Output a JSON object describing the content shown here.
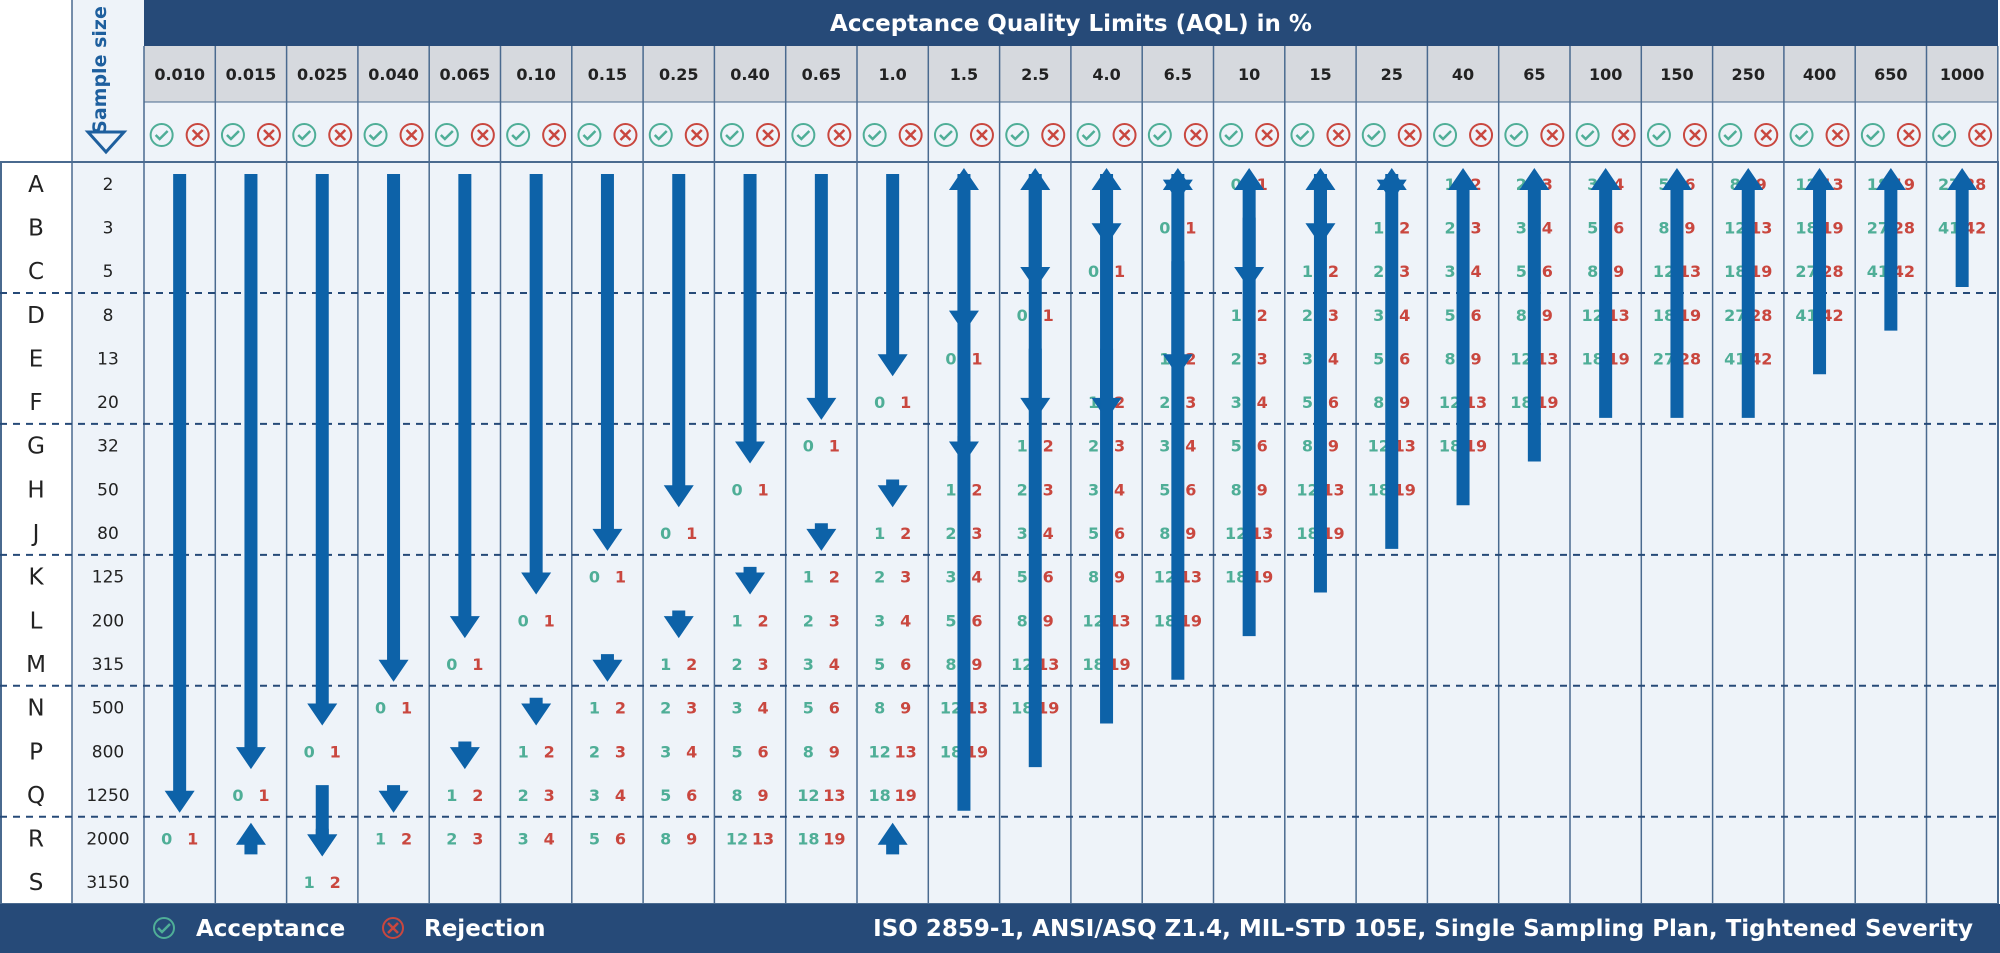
{
  "title": "Acceptance Quality Limits (AQL) in %",
  "sample_size_label": "Sample size",
  "aql_values": [
    "0.010",
    "0.015",
    "0.025",
    "0.040",
    "0.065",
    "0.10",
    "0.15",
    "0.25",
    "0.40",
    "0.65",
    "1.0",
    "1.5",
    "2.5",
    "4.0",
    "6.5",
    "10",
    "15",
    "25",
    "40",
    "65",
    "100",
    "150",
    "250",
    "400",
    "650",
    "1000"
  ],
  "code_letters": [
    "A",
    "B",
    "C",
    "D",
    "E",
    "F",
    "G",
    "H",
    "J",
    "K",
    "L",
    "M",
    "N",
    "P",
    "Q",
    "R",
    "S"
  ],
  "sample_sizes": [
    "2",
    "3",
    "5",
    "8",
    "13",
    "20",
    "32",
    "50",
    "80",
    "125",
    "200",
    "315",
    "500",
    "800",
    "1250",
    "2000",
    "3150"
  ],
  "legend": {
    "acceptance": "Acceptance",
    "rejection": "Rejection"
  },
  "standard_note": "ISO 2859-1, ANSI/ASQ Z1.4, MIL-STD 105E, Single Sampling Plan, Tightened Severity",
  "colors": {
    "header_blue": "#264a78",
    "header_gray": "#d6d9de",
    "body_bg": "#eef3f9",
    "arrow_blue": "#0d62a8",
    "accept_green": "#4fae97",
    "reject_red": "#c9473f",
    "grid_line": "#4a6a8f"
  },
  "icons": {
    "accept": "check-circle-icon",
    "reject": "x-circle-icon",
    "sort": "triangle-down-icon"
  },
  "plan_values": [
    [
      null,
      null,
      null,
      null,
      null,
      null,
      null,
      null,
      null,
      null,
      null,
      null,
      null,
      null,
      null,
      [
        0,
        1
      ],
      null,
      null,
      [
        1,
        2
      ],
      [
        2,
        3
      ],
      [
        3,
        4
      ],
      [
        5,
        6
      ],
      [
        8,
        9
      ],
      [
        12,
        13
      ],
      [
        18,
        19
      ],
      [
        27,
        28
      ]
    ],
    [
      null,
      null,
      null,
      null,
      null,
      null,
      null,
      null,
      null,
      null,
      null,
      null,
      null,
      null,
      [
        0,
        1
      ],
      null,
      null,
      [
        1,
        2
      ],
      [
        2,
        3
      ],
      [
        3,
        4
      ],
      [
        5,
        6
      ],
      [
        8,
        9
      ],
      [
        12,
        13
      ],
      [
        18,
        19
      ],
      [
        27,
        28
      ],
      [
        41,
        42
      ]
    ],
    [
      null,
      null,
      null,
      null,
      null,
      null,
      null,
      null,
      null,
      null,
      null,
      null,
      null,
      [
        0,
        1
      ],
      null,
      null,
      [
        1,
        2
      ],
      [
        2,
        3
      ],
      [
        3,
        4
      ],
      [
        5,
        6
      ],
      [
        8,
        9
      ],
      [
        12,
        13
      ],
      [
        18,
        19
      ],
      [
        27,
        28
      ],
      [
        41,
        42
      ],
      null
    ],
    [
      null,
      null,
      null,
      null,
      null,
      null,
      null,
      null,
      null,
      null,
      null,
      null,
      [
        0,
        1
      ],
      null,
      null,
      [
        1,
        2
      ],
      [
        2,
        3
      ],
      [
        3,
        4
      ],
      [
        5,
        6
      ],
      [
        8,
        9
      ],
      [
        12,
        13
      ],
      [
        18,
        19
      ],
      [
        27,
        28
      ],
      [
        41,
        42
      ],
      null,
      null
    ],
    [
      null,
      null,
      null,
      null,
      null,
      null,
      null,
      null,
      null,
      null,
      null,
      [
        0,
        1
      ],
      null,
      null,
      [
        1,
        2
      ],
      [
        2,
        3
      ],
      [
        3,
        4
      ],
      [
        5,
        6
      ],
      [
        8,
        9
      ],
      [
        12,
        13
      ],
      [
        18,
        19
      ],
      [
        27,
        28
      ],
      [
        41,
        42
      ],
      null,
      null,
      null
    ],
    [
      null,
      null,
      null,
      null,
      null,
      null,
      null,
      null,
      null,
      null,
      [
        0,
        1
      ],
      null,
      null,
      [
        1,
        2
      ],
      [
        2,
        3
      ],
      [
        3,
        4
      ],
      [
        5,
        6
      ],
      [
        8,
        9
      ],
      [
        12,
        13
      ],
      [
        18,
        19
      ],
      null,
      null,
      null,
      null,
      null,
      null
    ],
    [
      null,
      null,
      null,
      null,
      null,
      null,
      null,
      null,
      null,
      [
        0,
        1
      ],
      null,
      null,
      [
        1,
        2
      ],
      [
        2,
        3
      ],
      [
        3,
        4
      ],
      [
        5,
        6
      ],
      [
        8,
        9
      ],
      [
        12,
        13
      ],
      [
        18,
        19
      ],
      null,
      null,
      null,
      null,
      null,
      null,
      null
    ],
    [
      null,
      null,
      null,
      null,
      null,
      null,
      null,
      null,
      [
        0,
        1
      ],
      null,
      null,
      [
        1,
        2
      ],
      [
        2,
        3
      ],
      [
        3,
        4
      ],
      [
        5,
        6
      ],
      [
        8,
        9
      ],
      [
        12,
        13
      ],
      [
        18,
        19
      ],
      null,
      null,
      null,
      null,
      null,
      null,
      null,
      null
    ],
    [
      null,
      null,
      null,
      null,
      null,
      null,
      null,
      [
        0,
        1
      ],
      null,
      null,
      [
        1,
        2
      ],
      [
        2,
        3
      ],
      [
        3,
        4
      ],
      [
        5,
        6
      ],
      [
        8,
        9
      ],
      [
        12,
        13
      ],
      [
        18,
        19
      ],
      null,
      null,
      null,
      null,
      null,
      null,
      null,
      null,
      null
    ],
    [
      null,
      null,
      null,
      null,
      null,
      null,
      [
        0,
        1
      ],
      null,
      null,
      [
        1,
        2
      ],
      [
        2,
        3
      ],
      [
        3,
        4
      ],
      [
        5,
        6
      ],
      [
        8,
        9
      ],
      [
        12,
        13
      ],
      [
        18,
        19
      ],
      null,
      null,
      null,
      null,
      null,
      null,
      null,
      null,
      null,
      null
    ],
    [
      null,
      null,
      null,
      null,
      null,
      [
        0,
        1
      ],
      null,
      null,
      [
        1,
        2
      ],
      [
        2,
        3
      ],
      [
        3,
        4
      ],
      [
        5,
        6
      ],
      [
        8,
        9
      ],
      [
        12,
        13
      ],
      [
        18,
        19
      ],
      null,
      null,
      null,
      null,
      null,
      null,
      null,
      null,
      null,
      null,
      null
    ],
    [
      null,
      null,
      null,
      null,
      [
        0,
        1
      ],
      null,
      null,
      [
        1,
        2
      ],
      [
        2,
        3
      ],
      [
        3,
        4
      ],
      [
        5,
        6
      ],
      [
        8,
        9
      ],
      [
        12,
        13
      ],
      [
        18,
        19
      ],
      null,
      null,
      null,
      null,
      null,
      null,
      null,
      null,
      null,
      null,
      null,
      null
    ],
    [
      null,
      null,
      null,
      [
        0,
        1
      ],
      null,
      null,
      [
        1,
        2
      ],
      [
        2,
        3
      ],
      [
        3,
        4
      ],
      [
        5,
        6
      ],
      [
        8,
        9
      ],
      [
        12,
        13
      ],
      [
        18,
        19
      ],
      null,
      null,
      null,
      null,
      null,
      null,
      null,
      null,
      null,
      null,
      null,
      null,
      null
    ],
    [
      null,
      null,
      [
        0,
        1
      ],
      null,
      null,
      [
        1,
        2
      ],
      [
        2,
        3
      ],
      [
        3,
        4
      ],
      [
        5,
        6
      ],
      [
        8,
        9
      ],
      [
        12,
        13
      ],
      [
        18,
        19
      ],
      null,
      null,
      null,
      null,
      null,
      null,
      null,
      null,
      null,
      null,
      null,
      null,
      null,
      null
    ],
    [
      null,
      [
        0,
        1
      ],
      null,
      null,
      [
        1,
        2
      ],
      [
        2,
        3
      ],
      [
        3,
        4
      ],
      [
        5,
        6
      ],
      [
        8,
        9
      ],
      [
        12,
        13
      ],
      [
        18,
        19
      ],
      null,
      null,
      null,
      null,
      null,
      null,
      null,
      null,
      null,
      null,
      null,
      null,
      null,
      null,
      null
    ],
    [
      [
        0,
        1
      ],
      null,
      null,
      [
        1,
        2
      ],
      [
        2,
        3
      ],
      [
        3,
        4
      ],
      [
        5,
        6
      ],
      [
        8,
        9
      ],
      [
        12,
        13
      ],
      [
        18,
        19
      ],
      null,
      null,
      null,
      null,
      null,
      null,
      null,
      null,
      null,
      null,
      null,
      null,
      null,
      null,
      null,
      null
    ],
    [
      null,
      null,
      [
        1,
        2
      ],
      null,
      null,
      null,
      null,
      null,
      null,
      null,
      null,
      null,
      null,
      null,
      null,
      null,
      null,
      null,
      null,
      null,
      null,
      null,
      null,
      null,
      null,
      null
    ]
  ],
  "arrows_down": [
    [
      0,
      0,
      14
    ],
    [
      1,
      0,
      13
    ],
    [
      2,
      0,
      12
    ],
    [
      3,
      0,
      11
    ],
    [
      4,
      0,
      10
    ],
    [
      5,
      0,
      9
    ],
    [
      6,
      0,
      8
    ],
    [
      7,
      0,
      7
    ],
    [
      8,
      0,
      6
    ],
    [
      9,
      0,
      5
    ],
    [
      10,
      0,
      4
    ],
    [
      11,
      0,
      3
    ],
    [
      12,
      0,
      2
    ],
    [
      13,
      0,
      1
    ],
    [
      14,
      0,
      0
    ],
    [
      16,
      0,
      1
    ],
    [
      17,
      0,
      0
    ],
    [
      15,
      1,
      2
    ],
    [
      14,
      2,
      4
    ],
    [
      13,
      4,
      5
    ],
    [
      12,
      4,
      5
    ],
    [
      11,
      6,
      6
    ],
    [
      10,
      7,
      7
    ],
    [
      9,
      8,
      8
    ],
    [
      8,
      9,
      9
    ],
    [
      7,
      10,
      10
    ],
    [
      6,
      11,
      11
    ],
    [
      5,
      12,
      12
    ],
    [
      4,
      13,
      13
    ],
    [
      3,
      14,
      14
    ],
    [
      2,
      14,
      15
    ],
    [
      2,
      15,
      15
    ]
  ],
  "arrows_up": [
    [
      25,
      0,
      2
    ],
    [
      24,
      0,
      3
    ],
    [
      23,
      0,
      4
    ],
    [
      22,
      0,
      5
    ],
    [
      21,
      0,
      5
    ],
    [
      20,
      0,
      5
    ],
    [
      19,
      0,
      6
    ],
    [
      18,
      0,
      7
    ],
    [
      17,
      0,
      8
    ],
    [
      16,
      0,
      9
    ],
    [
      15,
      0,
      10
    ],
    [
      14,
      0,
      11
    ],
    [
      13,
      0,
      12
    ],
    [
      12,
      0,
      13
    ],
    [
      11,
      0,
      14
    ],
    [
      10,
      15,
      15
    ],
    [
      1,
      15,
      15
    ]
  ]
}
